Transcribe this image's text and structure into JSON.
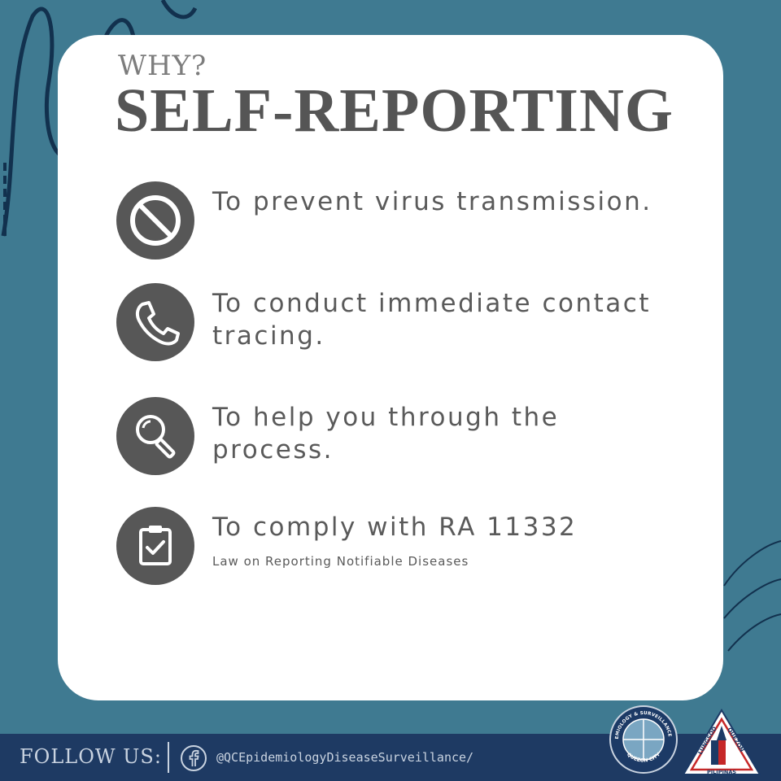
{
  "header": {
    "kicker": "WHY?",
    "title": "SELF-REPORTING"
  },
  "items": [
    {
      "icon": "prohibited-icon",
      "text": "To prevent virus transmission."
    },
    {
      "icon": "phone-icon",
      "text": "To conduct immediate contact tracing."
    },
    {
      "icon": "magnifier-icon",
      "text": "To help you through the process."
    },
    {
      "icon": "clipboard-check-icon",
      "text": "To comply with RA 11332",
      "subtext": "Law on Reporting Notifiable Diseases"
    }
  ],
  "footer": {
    "follow_label": "FOLLOW US:",
    "handle": "@QCEpidemiologyDiseaseSurveillance/",
    "social_icon": "facebook-icon"
  },
  "logos": {
    "seal": {
      "icon": "esu-seal-logo",
      "ring_text": "EPIDEMIOLOGY & SURVEILLANCE UNIT",
      "bottom_text": "QUEZON CITY"
    },
    "city": {
      "icon": "quezon-city-logo",
      "left_text": "LUNGSOD",
      "right_text": "QUEZON",
      "bottom_text": "PILIPINAS"
    }
  },
  "colors": {
    "background": "#3f7a91",
    "card": "#ffffff",
    "icon_circle": "#575757",
    "text": "#5a5a5a",
    "footer": "#1e3a63"
  }
}
